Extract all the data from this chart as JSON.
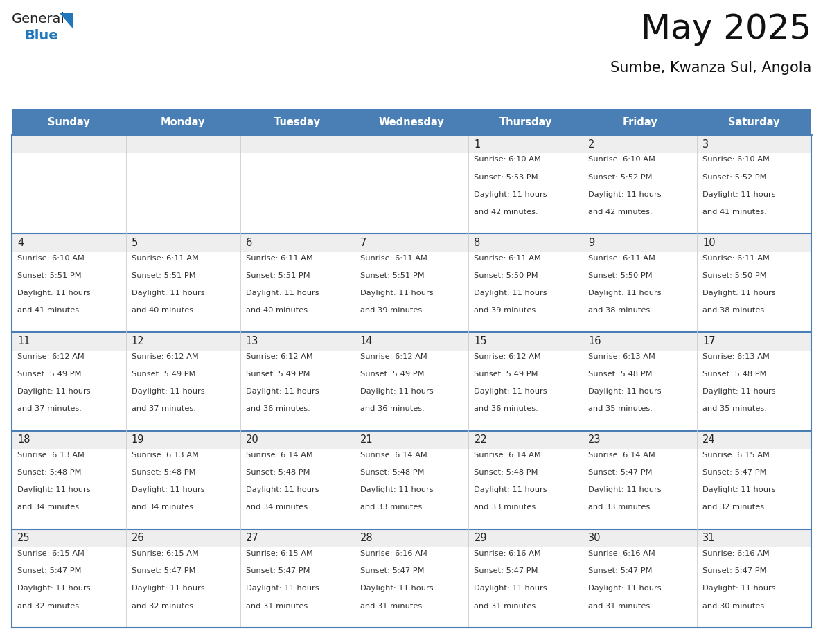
{
  "title": "May 2025",
  "subtitle": "Sumbe, Kwanza Sul, Angola",
  "days_of_week": [
    "Sunday",
    "Monday",
    "Tuesday",
    "Wednesday",
    "Thursday",
    "Friday",
    "Saturday"
  ],
  "header_bg": "#4a7fb5",
  "header_text": "#ffffff",
  "cell_bg_white": "#ffffff",
  "cell_bg_gray": "#eeeeee",
  "border_color_strong": "#4a7fb5",
  "border_color_weak": "#cccccc",
  "day_num_color": "#222222",
  "text_color": "#333333",
  "title_color": "#111111",
  "logo_black": "#222222",
  "logo_blue": "#2277bb",
  "calendar": [
    [
      null,
      null,
      null,
      null,
      {
        "day": 1,
        "sunrise": "6:10 AM",
        "sunset": "5:53 PM",
        "daylight": "11 hours and 42 minutes."
      },
      {
        "day": 2,
        "sunrise": "6:10 AM",
        "sunset": "5:52 PM",
        "daylight": "11 hours and 42 minutes."
      },
      {
        "day": 3,
        "sunrise": "6:10 AM",
        "sunset": "5:52 PM",
        "daylight": "11 hours and 41 minutes."
      }
    ],
    [
      {
        "day": 4,
        "sunrise": "6:10 AM",
        "sunset": "5:51 PM",
        "daylight": "11 hours and 41 minutes."
      },
      {
        "day": 5,
        "sunrise": "6:11 AM",
        "sunset": "5:51 PM",
        "daylight": "11 hours and 40 minutes."
      },
      {
        "day": 6,
        "sunrise": "6:11 AM",
        "sunset": "5:51 PM",
        "daylight": "11 hours and 40 minutes."
      },
      {
        "day": 7,
        "sunrise": "6:11 AM",
        "sunset": "5:51 PM",
        "daylight": "11 hours and 39 minutes."
      },
      {
        "day": 8,
        "sunrise": "6:11 AM",
        "sunset": "5:50 PM",
        "daylight": "11 hours and 39 minutes."
      },
      {
        "day": 9,
        "sunrise": "6:11 AM",
        "sunset": "5:50 PM",
        "daylight": "11 hours and 38 minutes."
      },
      {
        "day": 10,
        "sunrise": "6:11 AM",
        "sunset": "5:50 PM",
        "daylight": "11 hours and 38 minutes."
      }
    ],
    [
      {
        "day": 11,
        "sunrise": "6:12 AM",
        "sunset": "5:49 PM",
        "daylight": "11 hours and 37 minutes."
      },
      {
        "day": 12,
        "sunrise": "6:12 AM",
        "sunset": "5:49 PM",
        "daylight": "11 hours and 37 minutes."
      },
      {
        "day": 13,
        "sunrise": "6:12 AM",
        "sunset": "5:49 PM",
        "daylight": "11 hours and 36 minutes."
      },
      {
        "day": 14,
        "sunrise": "6:12 AM",
        "sunset": "5:49 PM",
        "daylight": "11 hours and 36 minutes."
      },
      {
        "day": 15,
        "sunrise": "6:12 AM",
        "sunset": "5:49 PM",
        "daylight": "11 hours and 36 minutes."
      },
      {
        "day": 16,
        "sunrise": "6:13 AM",
        "sunset": "5:48 PM",
        "daylight": "11 hours and 35 minutes."
      },
      {
        "day": 17,
        "sunrise": "6:13 AM",
        "sunset": "5:48 PM",
        "daylight": "11 hours and 35 minutes."
      }
    ],
    [
      {
        "day": 18,
        "sunrise": "6:13 AM",
        "sunset": "5:48 PM",
        "daylight": "11 hours and 34 minutes."
      },
      {
        "day": 19,
        "sunrise": "6:13 AM",
        "sunset": "5:48 PM",
        "daylight": "11 hours and 34 minutes."
      },
      {
        "day": 20,
        "sunrise": "6:14 AM",
        "sunset": "5:48 PM",
        "daylight": "11 hours and 34 minutes."
      },
      {
        "day": 21,
        "sunrise": "6:14 AM",
        "sunset": "5:48 PM",
        "daylight": "11 hours and 33 minutes."
      },
      {
        "day": 22,
        "sunrise": "6:14 AM",
        "sunset": "5:48 PM",
        "daylight": "11 hours and 33 minutes."
      },
      {
        "day": 23,
        "sunrise": "6:14 AM",
        "sunset": "5:47 PM",
        "daylight": "11 hours and 33 minutes."
      },
      {
        "day": 24,
        "sunrise": "6:15 AM",
        "sunset": "5:47 PM",
        "daylight": "11 hours and 32 minutes."
      }
    ],
    [
      {
        "day": 25,
        "sunrise": "6:15 AM",
        "sunset": "5:47 PM",
        "daylight": "11 hours and 32 minutes."
      },
      {
        "day": 26,
        "sunrise": "6:15 AM",
        "sunset": "5:47 PM",
        "daylight": "11 hours and 32 minutes."
      },
      {
        "day": 27,
        "sunrise": "6:15 AM",
        "sunset": "5:47 PM",
        "daylight": "11 hours and 31 minutes."
      },
      {
        "day": 28,
        "sunrise": "6:16 AM",
        "sunset": "5:47 PM",
        "daylight": "11 hours and 31 minutes."
      },
      {
        "day": 29,
        "sunrise": "6:16 AM",
        "sunset": "5:47 PM",
        "daylight": "11 hours and 31 minutes."
      },
      {
        "day": 30,
        "sunrise": "6:16 AM",
        "sunset": "5:47 PM",
        "daylight": "11 hours and 31 minutes."
      },
      {
        "day": 31,
        "sunrise": "6:16 AM",
        "sunset": "5:47 PM",
        "daylight": "11 hours and 30 minutes."
      }
    ]
  ]
}
